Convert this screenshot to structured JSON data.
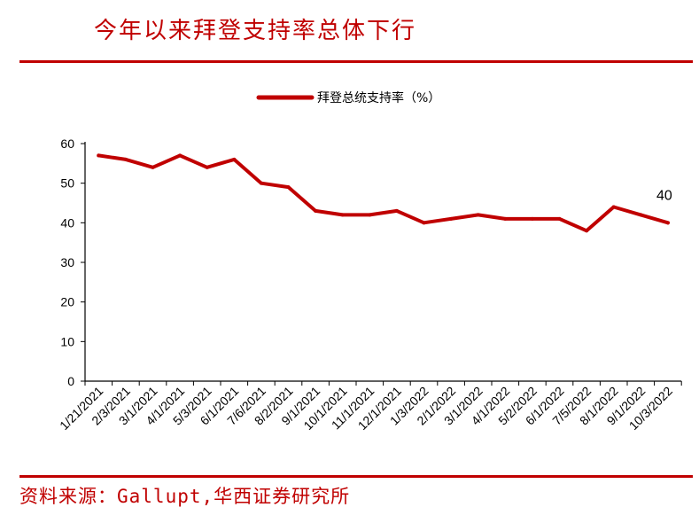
{
  "header": {
    "title": "今年以来拜登支持率总体下行"
  },
  "footer": {
    "source": "资料来源：Gallupt,华西证券研究所"
  },
  "colors": {
    "accent": "#c00000",
    "line": "#c00000",
    "axis": "#000000"
  },
  "chart_data": {
    "type": "line",
    "title": "",
    "xlabel": "",
    "ylabel": "",
    "ylim": [
      0,
      60
    ],
    "yticks": [
      0,
      10,
      20,
      30,
      40,
      50,
      60
    ],
    "grid": false,
    "legend": "top-center",
    "categories": [
      "1/21/2021",
      "2/3/2021",
      "3/1/2021",
      "4/1/2021",
      "5/3/2021",
      "6/1/2021",
      "7/6/2021",
      "8/2/2021",
      "9/1/2021",
      "10/1/2021",
      "11/1/2021",
      "12/1/2021",
      "1/3/2022",
      "2/1/2022",
      "3/1/2022",
      "4/1/2022",
      "5/2/2022",
      "6/1/2022",
      "7/5/2022",
      "8/1/2022",
      "9/1/2022",
      "10/3/2022"
    ],
    "series": [
      {
        "name": "拜登总统支持率（%）",
        "values": [
          57,
          56,
          54,
          57,
          54,
          56,
          50,
          49,
          43,
          42,
          42,
          43,
          40,
          41,
          42,
          41,
          41,
          41,
          38,
          44,
          42,
          40
        ]
      }
    ],
    "annotations": [
      {
        "category": "10/3/2022",
        "text": "40"
      }
    ]
  }
}
